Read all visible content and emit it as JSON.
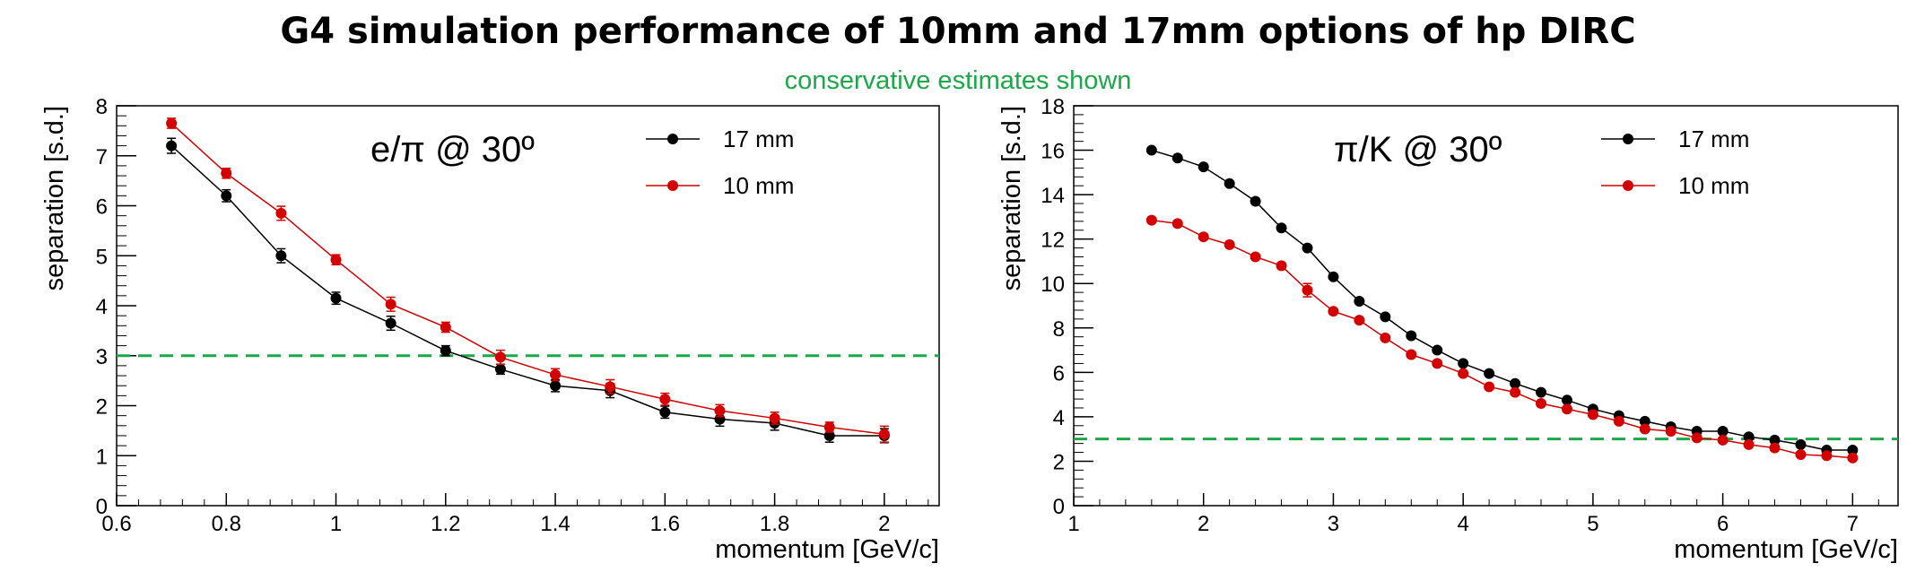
{
  "page": {
    "title": "G4 simulation performance of 10mm and 17mm options of hp DIRC",
    "subtitle": "conservative estimates shown",
    "subtitle_color": "#1aa848"
  },
  "colors": {
    "s17": "#000000",
    "s10": "#d40000",
    "threshold": "#1aa848"
  },
  "chart_data": [
    {
      "type": "line",
      "annotation": "e/π @ 30º",
      "xlabel": "momentum [GeV/c]",
      "ylabel": "separation [s.d.]",
      "xlim": [
        0.6,
        2.1
      ],
      "ylim": [
        0,
        8
      ],
      "xticks": [
        0.6,
        0.8,
        1,
        1.2,
        1.4,
        1.6,
        1.8,
        2
      ],
      "xtick_labels": [
        "0.6",
        "0.8",
        "1",
        "1.2",
        "1.4",
        "1.6",
        "1.8",
        "2"
      ],
      "yticks": [
        0,
        1,
        2,
        3,
        4,
        5,
        6,
        7,
        8
      ],
      "ytick_labels": [
        "0",
        "1",
        "2",
        "3",
        "4",
        "5",
        "6",
        "7",
        "8"
      ],
      "legend_position": "top-right",
      "threshold": 3,
      "series": [
        {
          "name": "17 mm",
          "x": [
            0.7,
            0.8,
            0.9,
            1.0,
            1.1,
            1.2,
            1.3,
            1.4,
            1.5,
            1.6,
            1.7,
            1.8,
            1.9,
            2.0
          ],
          "y": [
            7.2,
            6.2,
            5.0,
            4.15,
            3.65,
            3.1,
            2.73,
            2.4,
            2.3,
            1.87,
            1.73,
            1.65,
            1.4,
            1.4
          ],
          "err": [
            0.15,
            0.12,
            0.14,
            0.12,
            0.14,
            0.1,
            0.1,
            0.12,
            0.14,
            0.12,
            0.14,
            0.14,
            0.13,
            0.14
          ]
        },
        {
          "name": "10 mm",
          "x": [
            0.7,
            0.8,
            0.9,
            1.0,
            1.1,
            1.2,
            1.3,
            1.4,
            1.5,
            1.6,
            1.7,
            1.8,
            1.9,
            2.0
          ],
          "y": [
            7.65,
            6.65,
            5.85,
            4.92,
            4.03,
            3.57,
            2.97,
            2.62,
            2.38,
            2.13,
            1.9,
            1.75,
            1.57,
            1.43
          ],
          "err": [
            0.1,
            0.1,
            0.14,
            0.1,
            0.14,
            0.1,
            0.14,
            0.12,
            0.14,
            0.12,
            0.12,
            0.12,
            0.1,
            0.16
          ]
        }
      ]
    },
    {
      "type": "line",
      "annotation": "π/K @ 30º",
      "xlabel": "momentum [GeV/c]",
      "ylabel": "separation [s.d.]",
      "xlim": [
        1,
        7.35
      ],
      "ylim": [
        0,
        18
      ],
      "xticks": [
        1,
        2,
        3,
        4,
        5,
        6,
        7
      ],
      "xtick_labels": [
        "1",
        "2",
        "3",
        "4",
        "5",
        "6",
        "7"
      ],
      "yticks": [
        0,
        2,
        4,
        6,
        8,
        10,
        12,
        14,
        16,
        18
      ],
      "ytick_labels": [
        "0",
        "2",
        "4",
        "6",
        "8",
        "10",
        "12",
        "14",
        "16",
        "18"
      ],
      "legend_position": "top-right",
      "threshold": 3,
      "series": [
        {
          "name": "17 mm",
          "x": [
            1.6,
            1.8,
            2.0,
            2.2,
            2.4,
            2.6,
            2.8,
            3.0,
            3.2,
            3.4,
            3.6,
            3.8,
            4.0,
            4.2,
            4.4,
            4.6,
            4.8,
            5.0,
            5.2,
            5.4,
            5.6,
            5.8,
            6.0,
            6.2,
            6.4,
            6.6,
            6.8,
            7.0
          ],
          "y": [
            16.0,
            15.65,
            15.25,
            14.5,
            13.7,
            12.5,
            11.6,
            10.3,
            9.2,
            8.5,
            7.65,
            7.0,
            6.4,
            5.95,
            5.5,
            5.1,
            4.75,
            4.35,
            4.05,
            3.8,
            3.55,
            3.35,
            3.35,
            3.1,
            2.95,
            2.75,
            2.5,
            2.5
          ],
          "err": [
            0.05,
            0.05,
            0.05,
            0.05,
            0.05,
            0.05,
            0.05,
            0.05,
            0.05,
            0.05,
            0.05,
            0.05,
            0.05,
            0.05,
            0.05,
            0.05,
            0.05,
            0.05,
            0.05,
            0.05,
            0.05,
            0.05,
            0.05,
            0.05,
            0.05,
            0.05,
            0.05,
            0.05
          ]
        },
        {
          "name": "10 mm",
          "x": [
            1.6,
            1.8,
            2.0,
            2.2,
            2.4,
            2.6,
            2.8,
            3.0,
            3.2,
            3.4,
            3.6,
            3.8,
            4.0,
            4.2,
            4.4,
            4.6,
            4.8,
            5.0,
            5.2,
            5.4,
            5.6,
            5.8,
            6.0,
            6.2,
            6.4,
            6.6,
            6.8,
            7.0
          ],
          "y": [
            12.85,
            12.7,
            12.1,
            11.75,
            11.2,
            10.8,
            9.7,
            8.75,
            8.35,
            7.55,
            6.8,
            6.4,
            5.95,
            5.35,
            5.1,
            4.6,
            4.35,
            4.1,
            3.8,
            3.45,
            3.35,
            3.05,
            2.95,
            2.75,
            2.6,
            2.3,
            2.25,
            2.15
          ],
          "err": [
            0.1,
            0.12,
            0.12,
            0.1,
            0.1,
            0.12,
            0.3,
            0.1,
            0.1,
            0.1,
            0.12,
            0.1,
            0.1,
            0.1,
            0.1,
            0.1,
            0.1,
            0.1,
            0.1,
            0.1,
            0.1,
            0.1,
            0.1,
            0.1,
            0.1,
            0.1,
            0.1,
            0.1
          ]
        }
      ]
    }
  ]
}
